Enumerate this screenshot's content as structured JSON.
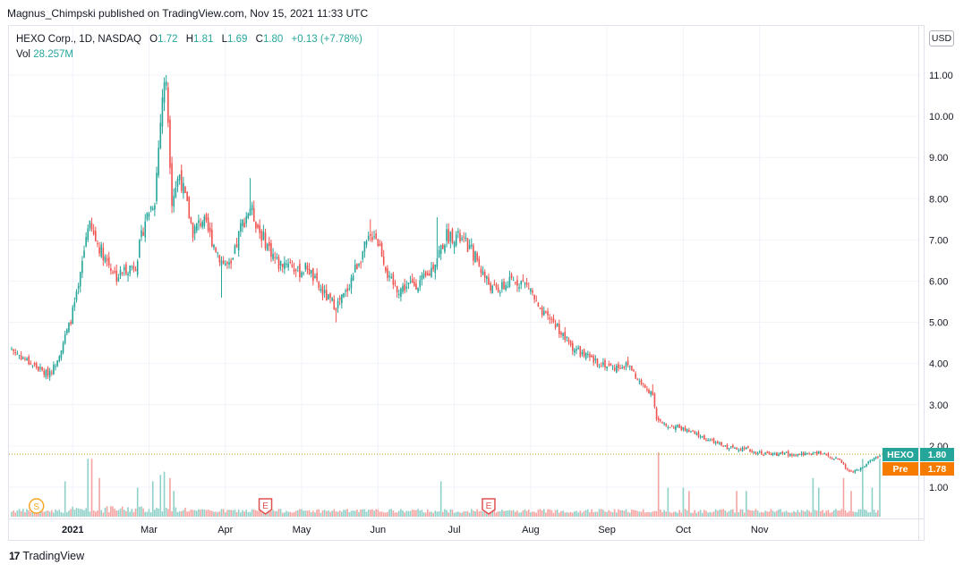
{
  "header": {
    "published": "Magnus_Chimpski published on TradingView.com, Nov 15, 2021 11:33 UTC"
  },
  "legend": {
    "symbol": "HEXO Corp., 1D, NASDAQ",
    "open_label": "O",
    "open": "1.72",
    "high_label": "H",
    "high": "1.81",
    "low_label": "L",
    "low": "1.69",
    "close_label": "C",
    "close": "1.80",
    "change": "+0.13 (+7.78%)",
    "vol_label": "Vol",
    "vol": "28.257M"
  },
  "currency": "USD",
  "footer": {
    "brand": "TradingView",
    "logo_mark": "17"
  },
  "colors": {
    "up": "#26a69a",
    "down": "#ef5350",
    "vol_up": "#8fd0c8",
    "vol_down": "#f4a3a1",
    "pre": "#f57c00",
    "grid": "#f0f3fa"
  },
  "chart_data": {
    "type": "candlestick",
    "y_ticks": [
      "11.00",
      "10.00",
      "9.00",
      "8.00",
      "7.00",
      "6.00",
      "5.00",
      "4.00",
      "3.00",
      "2.00",
      "1.00"
    ],
    "ylim": [
      0.3,
      11.6
    ],
    "x_ticks": [
      "2021",
      "Mar",
      "Apr",
      "May",
      "Jun",
      "Jul",
      "Aug",
      "Sep",
      "Oct",
      "Nov"
    ],
    "price_labels": [
      {
        "name": "HEXO",
        "value": "1.80",
        "price": 1.8
      },
      {
        "name": "Pre",
        "value": "1.78",
        "price": 1.78
      }
    ],
    "event_markers": [
      {
        "label": "S",
        "index": 13
      },
      {
        "label": "E",
        "index": 133
      },
      {
        "label": "E",
        "index": 250
      }
    ],
    "close_path": [
      [
        0,
        4.35
      ],
      [
        10,
        4.0
      ],
      [
        18,
        3.75
      ],
      [
        22,
        3.9
      ],
      [
        26,
        4.4
      ],
      [
        30,
        4.9
      ],
      [
        35,
        5.8
      ],
      [
        40,
        7.4
      ],
      [
        44,
        7.0
      ],
      [
        50,
        6.5
      ],
      [
        55,
        6.1
      ],
      [
        60,
        6.3
      ],
      [
        65,
        6.4
      ],
      [
        70,
        7.5
      ],
      [
        75,
        8.0
      ],
      [
        79,
        10.5
      ],
      [
        81,
        10.9
      ],
      [
        84,
        8.0
      ],
      [
        88,
        8.6
      ],
      [
        95,
        7.2
      ],
      [
        100,
        7.5
      ],
      [
        105,
        7.0
      ],
      [
        110,
        6.5
      ],
      [
        115,
        6.3
      ],
      [
        120,
        7.3
      ],
      [
        125,
        7.8
      ],
      [
        130,
        7.2
      ],
      [
        135,
        6.8
      ],
      [
        140,
        6.4
      ],
      [
        145,
        6.5
      ],
      [
        150,
        6.2
      ],
      [
        155,
        6.35
      ],
      [
        160,
        5.9
      ],
      [
        165,
        5.6
      ],
      [
        170,
        5.4
      ],
      [
        175,
        5.7
      ],
      [
        180,
        6.3
      ],
      [
        185,
        6.8
      ],
      [
        190,
        7.2
      ],
      [
        194,
        6.7
      ],
      [
        198,
        6.0
      ],
      [
        203,
        5.8
      ],
      [
        208,
        5.9
      ],
      [
        213,
        5.95
      ],
      [
        218,
        6.1
      ],
      [
        223,
        6.6
      ],
      [
        228,
        7.1
      ],
      [
        233,
        7.1
      ],
      [
        238,
        6.9
      ],
      [
        243,
        6.6
      ],
      [
        248,
        6.1
      ],
      [
        252,
        5.8
      ],
      [
        256,
        5.8
      ],
      [
        262,
        6.0
      ],
      [
        267,
        6.0
      ],
      [
        272,
        5.8
      ],
      [
        277,
        5.2
      ],
      [
        282,
        5.1
      ],
      [
        286,
        4.9
      ],
      [
        290,
        4.6
      ],
      [
        294,
        4.4
      ],
      [
        300,
        4.2
      ],
      [
        305,
        4.05
      ],
      [
        310,
        4.0
      ],
      [
        315,
        3.9
      ],
      [
        320,
        3.95
      ],
      [
        324,
        3.95
      ],
      [
        328,
        3.6
      ],
      [
        332,
        3.4
      ],
      [
        336,
        3.3
      ],
      [
        338,
        2.65
      ],
      [
        342,
        2.5
      ],
      [
        350,
        2.45
      ],
      [
        355,
        2.35
      ],
      [
        360,
        2.25
      ],
      [
        365,
        2.15
      ],
      [
        370,
        2.05
      ],
      [
        375,
        1.97
      ],
      [
        380,
        1.95
      ],
      [
        385,
        1.92
      ],
      [
        390,
        1.85
      ],
      [
        395,
        1.82
      ],
      [
        400,
        1.8
      ],
      [
        405,
        1.82
      ],
      [
        410,
        1.78
      ],
      [
        415,
        1.8
      ],
      [
        420,
        1.85
      ],
      [
        425,
        1.8
      ],
      [
        430,
        1.72
      ],
      [
        435,
        1.62
      ],
      [
        438,
        1.4
      ],
      [
        442,
        1.38
      ],
      [
        446,
        1.5
      ],
      [
        450,
        1.62
      ],
      [
        453,
        1.72
      ],
      [
        455,
        1.8
      ]
    ],
    "spikes": [
      {
        "index": 81,
        "high": 11.0
      },
      {
        "index": 110,
        "low": 5.6
      },
      {
        "index": 125,
        "high": 8.5
      },
      {
        "index": 170,
        "low": 5.0
      },
      {
        "index": 188,
        "high": 7.5
      },
      {
        "index": 223,
        "high": 7.55
      },
      {
        "index": 336,
        "high": 3.5
      }
    ],
    "volume_spikes": [
      {
        "index": 28,
        "v": 0.55
      },
      {
        "index": 40,
        "v": 0.9
      },
      {
        "index": 42,
        "v": 0.9
      },
      {
        "index": 46,
        "v": 0.6
      },
      {
        "index": 66,
        "v": 0.45
      },
      {
        "index": 74,
        "v": 0.55
      },
      {
        "index": 78,
        "v": 0.65
      },
      {
        "index": 80,
        "v": 0.7
      },
      {
        "index": 83,
        "v": 0.6
      },
      {
        "index": 85,
        "v": 0.4
      },
      {
        "index": 225,
        "v": 0.55
      },
      {
        "index": 339,
        "v": 1.0
      },
      {
        "index": 344,
        "v": 0.45
      },
      {
        "index": 352,
        "v": 0.45
      },
      {
        "index": 355,
        "v": 0.4
      },
      {
        "index": 380,
        "v": 0.4
      },
      {
        "index": 385,
        "v": 0.4
      },
      {
        "index": 420,
        "v": 0.6
      },
      {
        "index": 423,
        "v": 0.45
      },
      {
        "index": 436,
        "v": 0.6
      },
      {
        "index": 440,
        "v": 0.4
      },
      {
        "index": 446,
        "v": 0.9
      },
      {
        "index": 451,
        "v": 0.45
      },
      {
        "index": 455,
        "v": 0.9
      }
    ]
  }
}
